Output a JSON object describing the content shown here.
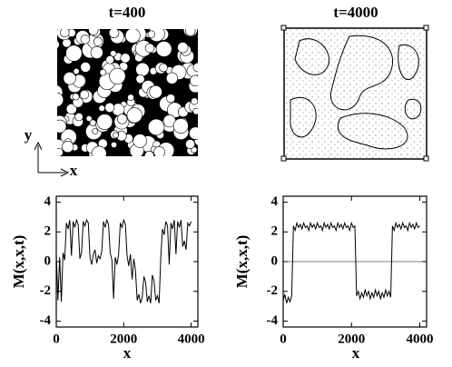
{
  "panels": [
    {
      "title": "t=400"
    },
    {
      "title": "t=4000"
    }
  ],
  "axes_indicator": {
    "x": "x",
    "y": "y"
  },
  "chart_data": [
    {
      "type": "line",
      "xlabel": "x",
      "ylabel": "M(x,x,t)",
      "color": "#000000",
      "zero_line": false,
      "xlim": [
        0,
        4200
      ],
      "ylim": [
        -4.4,
        4.4
      ],
      "xticks": [
        0,
        2000,
        4000
      ],
      "yticks": [
        -4,
        -2,
        0,
        2,
        4
      ],
      "x": [
        0,
        50,
        100,
        150,
        200,
        250,
        300,
        350,
        400,
        450,
        500,
        550,
        600,
        650,
        700,
        750,
        800,
        850,
        900,
        950,
        1000,
        1050,
        1100,
        1150,
        1200,
        1250,
        1300,
        1350,
        1400,
        1450,
        1500,
        1550,
        1600,
        1650,
        1700,
        1750,
        1800,
        1850,
        1900,
        1950,
        2000,
        2050,
        2100,
        2150,
        2200,
        2250,
        2300,
        2350,
        2400,
        2450,
        2500,
        2550,
        2600,
        2650,
        2700,
        2750,
        2800,
        2850,
        2900,
        2950,
        3000,
        3050,
        3100,
        3150,
        3200,
        3250,
        3300,
        3350,
        3400,
        3450,
        3500,
        3550,
        3600,
        3650,
        3700,
        3750,
        3800,
        3850,
        3900,
        3950,
        4000
      ],
      "values": [
        0.5,
        -2.6,
        0.3,
        -2.7,
        0.6,
        0.1,
        2.6,
        2.2,
        2.8,
        0.4,
        2.7,
        2.3,
        2.8,
        2.5,
        0.2,
        0.6,
        2.7,
        2.4,
        2.8,
        2.6,
        0.3,
        -0.2,
        0.5,
        0.8,
        -0.1,
        0.4,
        0.2,
        0.7,
        2.7,
        2.3,
        2.8,
        2.5,
        0.6,
        0.1,
        -2.5,
        0.3,
        -0.2,
        0.5,
        2.6,
        2.3,
        2.8,
        2.5,
        0.4,
        -0.3,
        0.5,
        -1.2,
        0.2,
        -0.6,
        -2.6,
        -2.2,
        -2.8,
        -2.4,
        -1.0,
        -1.4,
        -2.7,
        -2.3,
        -2.8,
        -0.9,
        -1.3,
        -2.6,
        -2.3,
        -2.8,
        0.3,
        2.2,
        1.8,
        2.7,
        2.4,
        -0.2,
        2.6,
        2.2,
        2.8,
        0.5,
        2.7,
        2.3,
        2.8,
        1.0,
        1.4,
        0.8,
        2.6,
        2.4,
        2.7
      ]
    },
    {
      "type": "line",
      "xlabel": "x",
      "ylabel": "M(x,x,t)",
      "color": "#000000",
      "zero_line": true,
      "xlim": [
        0,
        4200
      ],
      "ylim": [
        -4.4,
        4.4
      ],
      "xticks": [
        0,
        2000,
        4000
      ],
      "yticks": [
        -4,
        -2,
        0,
        2,
        4
      ],
      "x": [
        0,
        50,
        100,
        150,
        200,
        250,
        300,
        350,
        400,
        450,
        500,
        550,
        600,
        650,
        700,
        750,
        800,
        850,
        900,
        950,
        1000,
        1050,
        1100,
        1150,
        1200,
        1250,
        1300,
        1350,
        1400,
        1450,
        1500,
        1550,
        1600,
        1650,
        1700,
        1750,
        1800,
        1850,
        1900,
        1950,
        2000,
        2050,
        2100,
        2150,
        2200,
        2250,
        2300,
        2350,
        2400,
        2450,
        2500,
        2550,
        2600,
        2650,
        2700,
        2750,
        2800,
        2850,
        2900,
        2950,
        3000,
        3050,
        3100,
        3150,
        3200,
        3250,
        3300,
        3350,
        3400,
        3450,
        3500,
        3550,
        3600,
        3650,
        3700,
        3750,
        3800,
        3850,
        3900,
        3950,
        4000
      ],
      "values": [
        -2.6,
        -2.2,
        -2.8,
        -2.4,
        -2.7,
        -2.3,
        2.4,
        2.1,
        2.6,
        2.3,
        2.5,
        2.2,
        2.6,
        2.3,
        2.4,
        2.1,
        2.6,
        2.3,
        2.5,
        2.2,
        2.6,
        2.3,
        2.4,
        2.1,
        2.6,
        2.3,
        2.5,
        2.2,
        2.6,
        2.3,
        2.4,
        2.1,
        2.6,
        2.3,
        2.5,
        2.2,
        2.6,
        2.3,
        2.4,
        2.1,
        2.6,
        2.3,
        2.4,
        -2.3,
        -2.0,
        -2.5,
        -2.1,
        -2.4,
        -1.9,
        -2.3,
        -2.0,
        -2.5,
        -2.1,
        -2.4,
        -1.9,
        -2.3,
        -2.0,
        -2.5,
        -2.1,
        -2.4,
        -1.9,
        -2.3,
        -2.0,
        -2.4,
        2.4,
        2.1,
        2.6,
        2.3,
        2.5,
        2.2,
        2.6,
        2.3,
        2.4,
        2.1,
        2.6,
        2.3,
        2.5,
        2.2,
        2.6,
        2.3,
        2.4
      ]
    }
  ]
}
